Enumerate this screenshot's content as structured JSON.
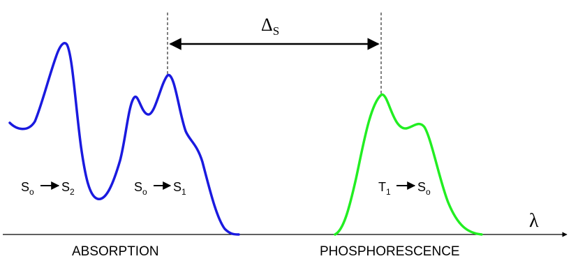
{
  "axis": {
    "label": "λ"
  },
  "shift": {
    "symbol": "Δ",
    "subscript": "S"
  },
  "transitions": [
    {
      "from": "S",
      "from_sub": "o",
      "to": "S",
      "to_sub": "2"
    },
    {
      "from": "S",
      "from_sub": "o",
      "to": "S",
      "to_sub": "1"
    },
    {
      "from": "T",
      "from_sub": "1",
      "to": "S",
      "to_sub": "o"
    }
  ],
  "sections": {
    "absorption": {
      "label": "ABSORPTION",
      "color": "#1a1adf"
    },
    "phosphorescence": {
      "label": "PHOSPHORESCENCE",
      "color": "#22ee22"
    }
  }
}
